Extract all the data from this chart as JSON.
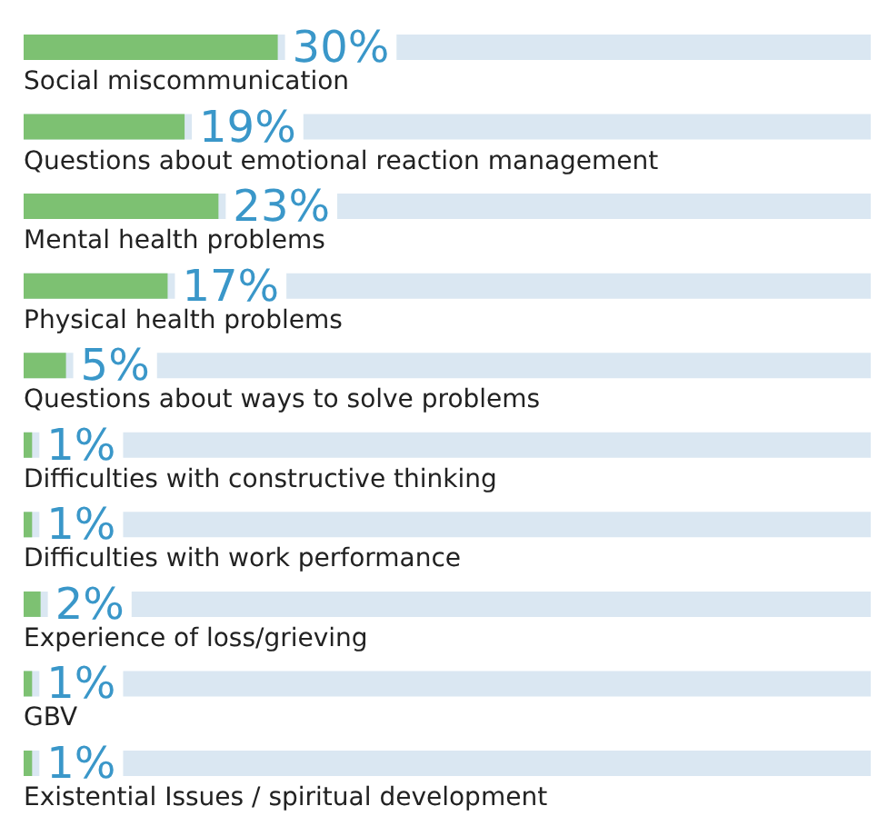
{
  "chart_data": {
    "type": "bar",
    "orientation": "horizontal",
    "categories": [
      "Social miscommunication",
      "Questions about emotional reaction management",
      "Mental health problems",
      "Physical health problems",
      "Questions about ways to solve problems",
      "Difficulties with constructive thinking",
      "Difficulties with work performance",
      "Experience of loss/grieving",
      "GBV",
      "Existential Issues / spiritual development"
    ],
    "values": [
      30,
      19,
      23,
      17,
      5,
      1,
      1,
      2,
      1,
      1
    ],
    "value_labels": [
      "30%",
      "19%",
      "23%",
      "17%",
      "5%",
      "1%",
      "1%",
      "2%",
      "1%",
      "1%"
    ],
    "color": "#7dc172",
    "xlim": [
      0,
      100
    ]
  }
}
